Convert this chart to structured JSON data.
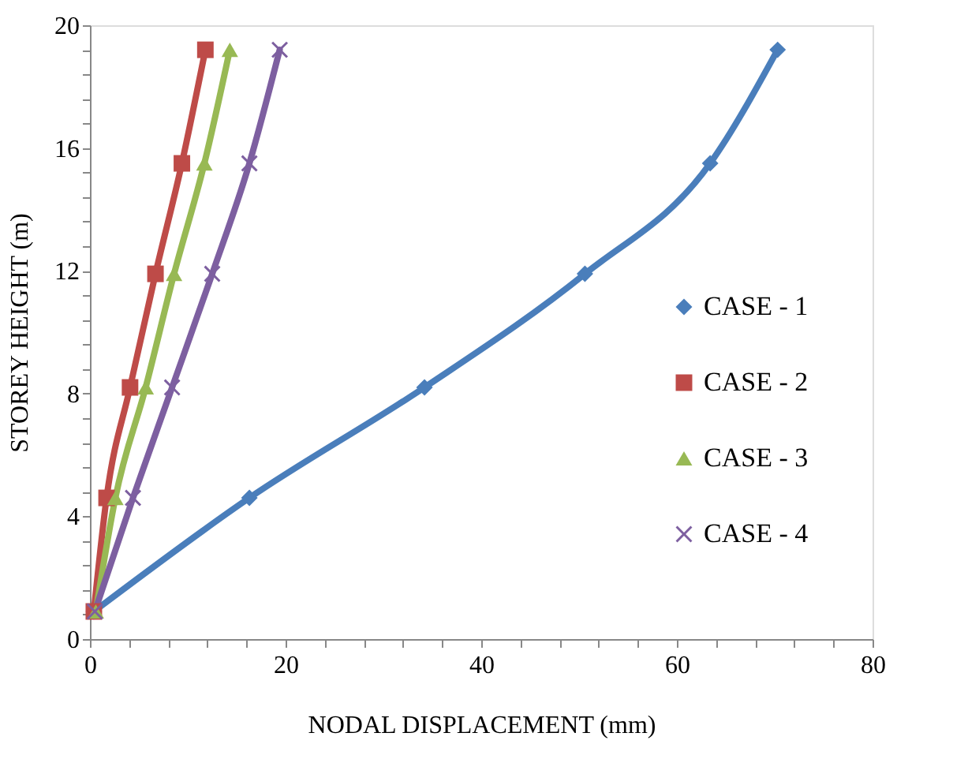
{
  "chart_data": {
    "type": "line",
    "xlabel": "NODAL DISPLACEMENT (mm)",
    "ylabel": "STOREY HEIGHT (m)",
    "series": [
      {
        "name": "CASE - 1",
        "color": "#4a7ebb",
        "marker": "diamond",
        "x": [
          0.4,
          16.3,
          34.2,
          50.6,
          63.4,
          70.3
        ],
        "values": [
          0.9,
          4.6,
          8.2,
          11.9,
          15.5,
          19.2
        ]
      },
      {
        "name": "CASE - 2",
        "color": "#be4b48",
        "marker": "square",
        "x": [
          0.4,
          1.7,
          4.1,
          6.7,
          9.4,
          11.8
        ],
        "values": [
          0.9,
          4.6,
          8.2,
          11.9,
          15.5,
          19.2
        ]
      },
      {
        "name": "CASE - 3",
        "color": "#98b954",
        "marker": "triangle",
        "x": [
          0.6,
          2.6,
          5.7,
          8.6,
          11.7,
          14.3
        ],
        "values": [
          0.9,
          4.6,
          8.2,
          11.9,
          15.5,
          19.2
        ]
      },
      {
        "name": "CASE - 4",
        "color": "#7d5fa0",
        "marker": "cross",
        "x": [
          0.5,
          4.4,
          8.4,
          12.5,
          16.3,
          19.4
        ],
        "values": [
          0.9,
          4.6,
          8.2,
          11.9,
          15.5,
          19.2
        ]
      }
    ],
    "xlim": [
      0,
      80
    ],
    "xticks": [
      0,
      {
        "value": 4,
        "label": null
      },
      {
        "value": 8,
        "label": null
      },
      {
        "value": 12,
        "label": null
      },
      {
        "value": 16,
        "label": null
      },
      20,
      {
        "value": 24,
        "label": null
      },
      {
        "value": 28,
        "label": null
      },
      {
        "value": 32,
        "label": null
      },
      {
        "value": 36,
        "label": null
      },
      40,
      {
        "value": 44,
        "label": null
      },
      {
        "value": 48,
        "label": null
      },
      {
        "value": 52,
        "label": null
      },
      {
        "value": 56,
        "label": null
      },
      60,
      {
        "value": 64,
        "label": null
      },
      {
        "value": 68,
        "label": null
      },
      {
        "value": 72,
        "label": null
      },
      {
        "value": 76,
        "label": null
      },
      80
    ],
    "ylim": [
      0,
      20
    ],
    "yticks": [
      0,
      {
        "value": 0.8,
        "label": null
      },
      {
        "value": 1.6,
        "label": null
      },
      {
        "value": 2.4,
        "label": null
      },
      {
        "value": 3.2,
        "label": null
      },
      4,
      {
        "value": 4.8,
        "label": null
      },
      {
        "value": 5.6,
        "label": null
      },
      {
        "value": 6.4,
        "label": null
      },
      {
        "value": 7.2,
        "label": null
      },
      8,
      {
        "value": 8.8,
        "label": null
      },
      {
        "value": 9.6,
        "label": null
      },
      {
        "value": 10.4,
        "label": null
      },
      {
        "value": 11.2,
        "label": null
      },
      12,
      {
        "value": 12.8,
        "label": null
      },
      {
        "value": 13.6,
        "label": null
      },
      {
        "value": 14.4,
        "label": null
      },
      {
        "value": 15.2,
        "label": null
      },
      16,
      {
        "value": 16.8,
        "label": null
      },
      {
        "value": 17.6,
        "label": null
      },
      {
        "value": 18.4,
        "label": null
      },
      {
        "value": 19.2,
        "label": null
      },
      20
    ],
    "grid": false,
    "legend": "right",
    "line_style": "solid"
  }
}
